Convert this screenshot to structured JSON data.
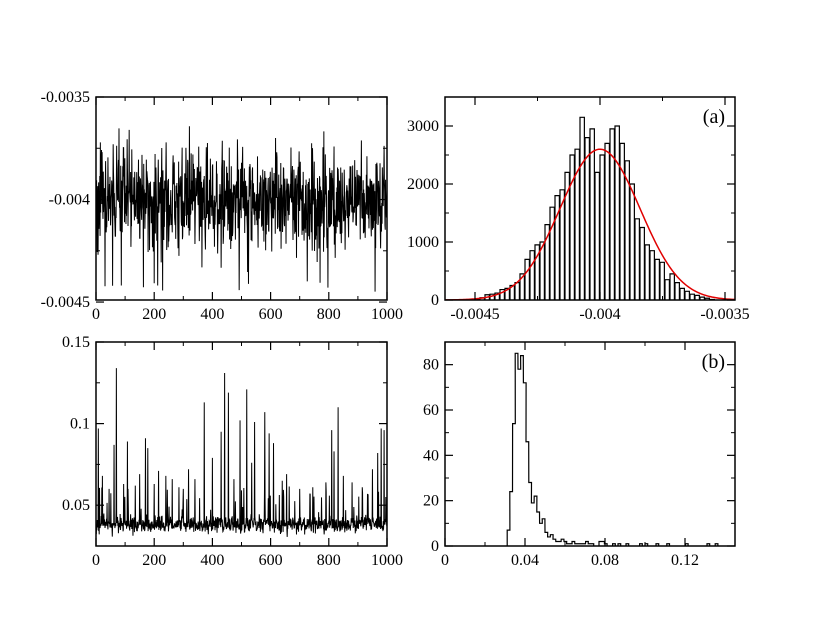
{
  "chart_data": [
    {
      "id": "trace-a",
      "type": "line",
      "title": "",
      "xlabel": "",
      "ylabel": "",
      "xlim": [
        0,
        1000
      ],
      "ylim": [
        -0.00449,
        -0.0035
      ],
      "xticks": [
        0,
        200,
        400,
        600,
        800,
        1000
      ],
      "xtick_labels": [
        "0",
        "200",
        "400",
        "600",
        "800",
        "1000"
      ],
      "yticks": [
        -0.0045,
        -0.004,
        -0.0035
      ],
      "ytick_labels": [
        "-0.0045",
        "-0.004",
        "-0.0035"
      ],
      "series": [
        {
          "color": "#000000",
          "mean": -0.004,
          "std": 0.00012,
          "n_points": 1000,
          "x": [
            0,
            100,
            200,
            300,
            400,
            500,
            600,
            700,
            800,
            900,
            1000
          ],
          "y": [
            -0.00401,
            -0.00396,
            -0.00403,
            -0.00398,
            -0.00399,
            -0.00401,
            -0.00397,
            -0.00402,
            -0.004,
            -0.00398,
            -0.00401
          ]
        }
      ]
    },
    {
      "id": "hist-a",
      "type": "bar",
      "title": "",
      "xlabel": "",
      "ylabel": "",
      "panel_label": "(a)",
      "xlim": [
        -0.00462,
        -0.00346
      ],
      "ylim": [
        0,
        3500
      ],
      "xticks": [
        -0.0045,
        -0.004,
        -0.0035
      ],
      "xtick_labels": [
        "-0.0045",
        "-0.004",
        "-0.0035"
      ],
      "yticks": [
        0,
        1000,
        2000,
        3000
      ],
      "ytick_labels": [
        "0",
        "1000",
        "2000",
        "3000"
      ],
      "histogram": {
        "color": "#000000",
        "bin_width": 1.75e-05,
        "bins": [
          [
            -0.0045,
            20
          ],
          [
            -0.00448,
            40
          ],
          [
            -0.00446,
            90
          ],
          [
            -0.00444,
            100
          ],
          [
            -0.00442,
            120
          ],
          [
            -0.0044,
            180
          ],
          [
            -0.00438,
            200
          ],
          [
            -0.00436,
            250
          ],
          [
            -0.00434,
            300
          ],
          [
            -0.00432,
            450
          ],
          [
            -0.0043,
            700
          ],
          [
            -0.00428,
            850
          ],
          [
            -0.00426,
            950
          ],
          [
            -0.00424,
            1000
          ],
          [
            -0.00422,
            1300
          ],
          [
            -0.0042,
            1600
          ],
          [
            -0.00418,
            1800
          ],
          [
            -0.00416,
            1900
          ],
          [
            -0.00414,
            2200
          ],
          [
            -0.00412,
            2500
          ],
          [
            -0.0041,
            2600
          ],
          [
            -0.00408,
            3150
          ],
          [
            -0.00406,
            2800
          ],
          [
            -0.00404,
            2950
          ],
          [
            -0.00402,
            2200
          ],
          [
            -0.004,
            2500
          ],
          [
            -0.00398,
            2700
          ],
          [
            -0.00396,
            2950
          ],
          [
            -0.00394,
            3000
          ],
          [
            -0.00392,
            2700
          ],
          [
            -0.0039,
            2400
          ],
          [
            -0.00388,
            2000
          ],
          [
            -0.00386,
            1400
          ],
          [
            -0.00384,
            1250
          ],
          [
            -0.00382,
            950
          ],
          [
            -0.0038,
            850
          ],
          [
            -0.00378,
            700
          ],
          [
            -0.00376,
            650
          ],
          [
            -0.00374,
            350
          ],
          [
            -0.00372,
            450
          ],
          [
            -0.0037,
            300
          ],
          [
            -0.00368,
            200
          ],
          [
            -0.00366,
            150
          ],
          [
            -0.00364,
            100
          ],
          [
            -0.00362,
            80
          ],
          [
            -0.0036,
            50
          ],
          [
            -0.00358,
            30
          ],
          [
            -0.00356,
            10
          ]
        ]
      },
      "fit": {
        "type": "gaussian",
        "color": "#e00000",
        "amplitude": 2600,
        "mean": -0.004,
        "sigma": 0.00016
      }
    },
    {
      "id": "trace-b",
      "type": "line",
      "title": "",
      "xlabel": "",
      "ylabel": "",
      "xlim": [
        0,
        1000
      ],
      "ylim": [
        0.025,
        0.15
      ],
      "xticks": [
        0,
        200,
        400,
        600,
        800,
        1000
      ],
      "xtick_labels": [
        "0",
        "200",
        "400",
        "600",
        "800",
        "1000"
      ],
      "yticks": [
        0.05,
        0.1,
        0.15
      ],
      "ytick_labels": [
        "0.05",
        "0.1",
        "0.15"
      ],
      "series": [
        {
          "color": "#000000",
          "baseline": 0.038,
          "noise": 0.0025,
          "n_points": 1000,
          "spikes": [
            [
              8,
              0.097
            ],
            [
              22,
              0.068
            ],
            [
              45,
              0.06
            ],
            [
              62,
              0.087
            ],
            [
              70,
              0.134
            ],
            [
              95,
              0.063
            ],
            [
              108,
              0.089
            ],
            [
              135,
              0.062
            ],
            [
              150,
              0.069
            ],
            [
              170,
              0.091
            ],
            [
              178,
              0.085
            ],
            [
              200,
              0.063
            ],
            [
              215,
              0.071
            ],
            [
              240,
              0.068
            ],
            [
              262,
              0.066
            ],
            [
              285,
              0.061
            ],
            [
              300,
              0.06
            ],
            [
              318,
              0.072
            ],
            [
              340,
              0.066
            ],
            [
              372,
              0.113
            ],
            [
              400,
              0.079
            ],
            [
              430,
              0.095
            ],
            [
              442,
              0.131
            ],
            [
              455,
              0.119
            ],
            [
              474,
              0.066
            ],
            [
              495,
              0.102
            ],
            [
              518,
              0.121
            ],
            [
              535,
              0.076
            ],
            [
              545,
              0.101
            ],
            [
              580,
              0.107
            ],
            [
              595,
              0.094
            ],
            [
              610,
              0.088
            ],
            [
              640,
              0.065
            ],
            [
              655,
              0.069
            ],
            [
              700,
              0.06
            ],
            [
              745,
              0.061
            ],
            [
              790,
              0.064
            ],
            [
              810,
              0.096
            ],
            [
              818,
              0.083
            ],
            [
              832,
              0.11
            ],
            [
              850,
              0.068
            ],
            [
              880,
              0.064
            ],
            [
              915,
              0.061
            ],
            [
              950,
              0.072
            ],
            [
              968,
              0.082
            ],
            [
              980,
              0.097
            ],
            [
              990,
              0.096
            ],
            [
              996,
              0.055
            ]
          ]
        }
      ]
    },
    {
      "id": "hist-b",
      "type": "bar",
      "title": "",
      "xlabel": "",
      "ylabel": "",
      "panel_label": "(b)",
      "xlim": [
        0,
        0.145
      ],
      "ylim": [
        0,
        90
      ],
      "xticks": [
        0,
        0.04,
        0.08,
        0.12
      ],
      "xtick_labels": [
        "0",
        "0.04",
        "0.08",
        "0.12"
      ],
      "yticks": [
        0,
        20,
        40,
        60,
        80
      ],
      "ytick_labels": [
        "0",
        "20",
        "40",
        "60",
        "80"
      ],
      "histogram": {
        "color": "#000000",
        "bin_width": 0.00135,
        "bins": [
          [
            0.0311,
            7
          ],
          [
            0.0324,
            24
          ],
          [
            0.0338,
            54
          ],
          [
            0.0351,
            85
          ],
          [
            0.0365,
            78
          ],
          [
            0.0378,
            84
          ],
          [
            0.0392,
            72
          ],
          [
            0.0405,
            46
          ],
          [
            0.0419,
            28
          ],
          [
            0.0432,
            19
          ],
          [
            0.0446,
            22
          ],
          [
            0.0459,
            15
          ],
          [
            0.0473,
            10
          ],
          [
            0.0486,
            12
          ],
          [
            0.05,
            6
          ],
          [
            0.0513,
            4
          ],
          [
            0.0527,
            5
          ],
          [
            0.054,
            3
          ],
          [
            0.0554,
            2
          ],
          [
            0.0567,
            2
          ],
          [
            0.0581,
            3
          ],
          [
            0.0595,
            2
          ],
          [
            0.0608,
            1
          ],
          [
            0.0622,
            1
          ],
          [
            0.0635,
            2
          ],
          [
            0.0649,
            1
          ],
          [
            0.0662,
            1
          ],
          [
            0.0676,
            1
          ],
          [
            0.0689,
            1
          ],
          [
            0.0703,
            2
          ],
          [
            0.0716,
            1
          ],
          [
            0.073,
            1
          ],
          [
            0.077,
            2
          ],
          [
            0.0784,
            2
          ],
          [
            0.0797,
            1
          ],
          [
            0.0838,
            1
          ],
          [
            0.0865,
            1
          ],
          [
            0.0905,
            1
          ],
          [
            0.0973,
            1
          ],
          [
            0.1,
            1
          ],
          [
            0.1055,
            1
          ],
          [
            0.1109,
            1
          ],
          [
            0.1202,
            1
          ],
          [
            0.131,
            1
          ],
          [
            0.1351,
            1
          ]
        ]
      }
    }
  ]
}
